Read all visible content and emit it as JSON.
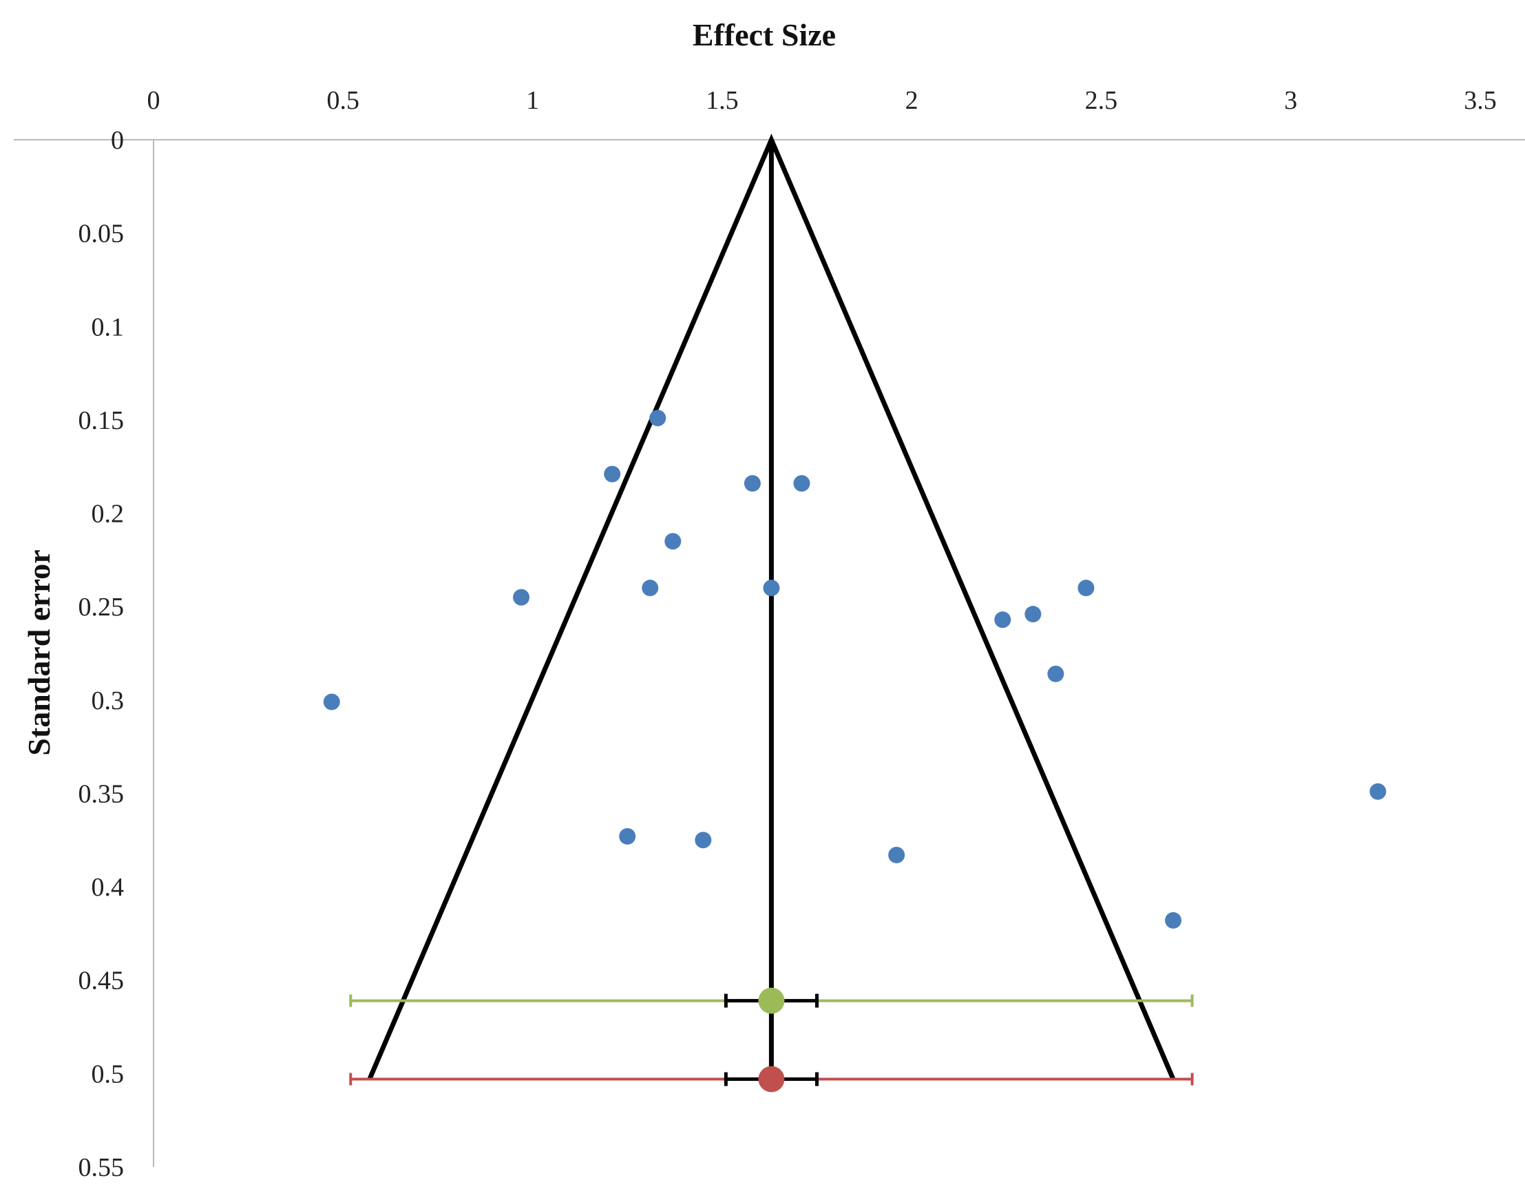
{
  "chart_data": {
    "type": "scatter",
    "title": "",
    "xlabel": "Effect Size",
    "ylabel": "Standard error",
    "x_axis_position": "top",
    "y_axis_reversed": true,
    "xlim": [
      0,
      3.5
    ],
    "ylim": [
      0,
      0.55
    ],
    "x_ticks": [
      "0",
      "0.5",
      "1",
      "1.5",
      "2",
      "2.5",
      "3",
      "3.5"
    ],
    "y_ticks": [
      "0",
      "0.05",
      "0.1",
      "0.15",
      "0.2",
      "0.25",
      "0.3",
      "0.35",
      "0.4",
      "0.45",
      "0.5",
      "0.55"
    ],
    "grid": false,
    "legend": "none",
    "series": [
      {
        "type": "scatter",
        "color": "#4a7ebb",
        "points": [
          {
            "x": 1.33,
            "y": 0.149
          },
          {
            "x": 1.21,
            "y": 0.179
          },
          {
            "x": 1.58,
            "y": 0.184
          },
          {
            "x": 1.71,
            "y": 0.184
          },
          {
            "x": 1.37,
            "y": 0.215
          },
          {
            "x": 0.97,
            "y": 0.245
          },
          {
            "x": 1.31,
            "y": 0.24
          },
          {
            "x": 1.63,
            "y": 0.24
          },
          {
            "x": 2.46,
            "y": 0.24
          },
          {
            "x": 2.24,
            "y": 0.257
          },
          {
            "x": 2.32,
            "y": 0.254
          },
          {
            "x": 2.38,
            "y": 0.286
          },
          {
            "x": 0.47,
            "y": 0.301
          },
          {
            "x": 3.23,
            "y": 0.349
          },
          {
            "x": 1.25,
            "y": 0.373
          },
          {
            "x": 1.45,
            "y": 0.375
          },
          {
            "x": 1.96,
            "y": 0.383
          },
          {
            "x": 2.69,
            "y": 0.418
          }
        ]
      },
      {
        "type": "line",
        "color": "#000000",
        "points": [
          {
            "x": 0.57,
            "y": 0.503
          },
          {
            "x": 1.63,
            "y": 0
          },
          {
            "x": 2.69,
            "y": 0.503
          }
        ]
      },
      {
        "type": "line",
        "color": "#000000",
        "points": [
          {
            "x": 1.63,
            "y": 0
          },
          {
            "x": 1.63,
            "y": 0.503
          }
        ]
      }
    ],
    "summary_estimates": [
      {
        "color": "#9bbb59",
        "x": 1.63,
        "y": 0.461,
        "ci": [
          1.51,
          1.75
        ],
        "pi": [
          0.52,
          2.74
        ]
      },
      {
        "color": "#c0504d",
        "x": 1.63,
        "y": 0.503,
        "ci": [
          1.51,
          1.75
        ],
        "pi": [
          0.52,
          2.74
        ]
      }
    ]
  }
}
